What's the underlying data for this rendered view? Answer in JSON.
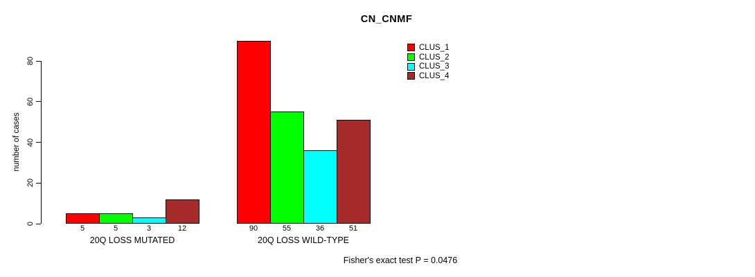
{
  "header": {
    "title": "CN_CNMF"
  },
  "chart_data": {
    "type": "bar",
    "title": "CN_CNMF",
    "xlabel": "",
    "ylabel": "number of cases",
    "categories": [
      "20Q LOSS MUTATED",
      "20Q LOSS WILD-TYPE"
    ],
    "series": [
      {
        "name": "CLUS_1",
        "color": "#FF0000",
        "values": [
          5,
          90
        ]
      },
      {
        "name": "CLUS_2",
        "color": "#00FF00",
        "values": [
          5,
          55
        ]
      },
      {
        "name": "CLUS_3",
        "color": "#00FFFF",
        "values": [
          3,
          36
        ]
      },
      {
        "name": "CLUS_4",
        "color": "#A52A2A",
        "values": [
          12,
          51
        ]
      }
    ],
    "bar_value_labels": [
      [
        "5",
        "5",
        "3",
        "12"
      ],
      [
        "90",
        "55",
        "36",
        "51"
      ]
    ],
    "yticks": [
      0,
      20,
      40,
      60,
      80
    ],
    "ylim": [
      0,
      90
    ],
    "grid": false,
    "legend_position": "top-right",
    "bar_border_color": "#000000",
    "annotation": "Fisher's exact test P = 0.0476"
  },
  "legend": {
    "items": [
      {
        "label": "CLUS_1",
        "color": "#FF0000"
      },
      {
        "label": "CLUS_2",
        "color": "#00FF00"
      },
      {
        "label": "CLUS_3",
        "color": "#00FFFF"
      },
      {
        "label": "CLUS_4",
        "color": "#A52A2A"
      }
    ]
  },
  "footer": {
    "text": "Fisher's exact test P = 0.0476"
  }
}
